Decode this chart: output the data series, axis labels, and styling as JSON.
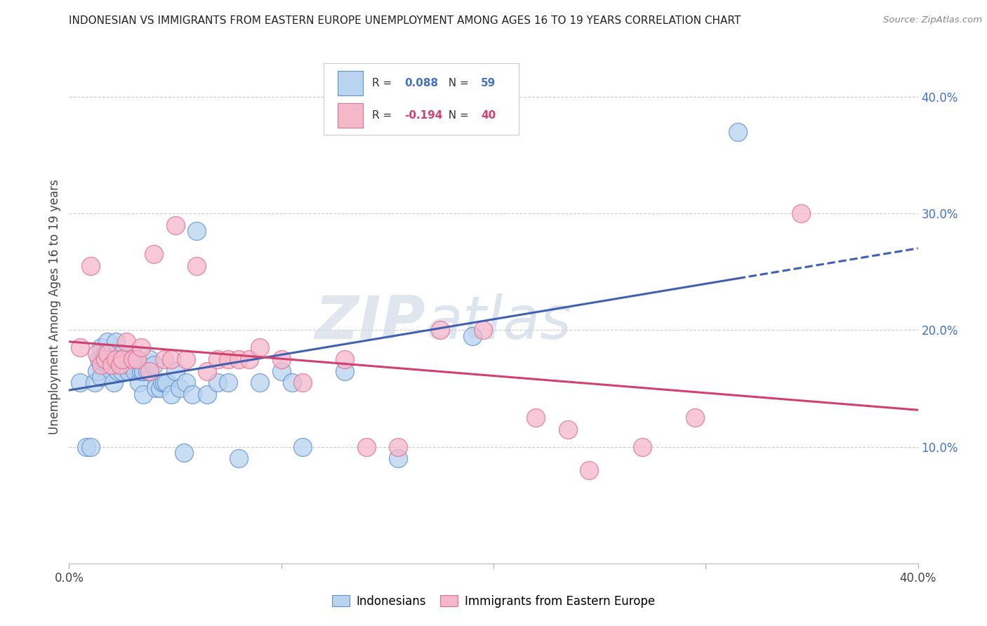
{
  "title": "INDONESIAN VS IMMIGRANTS FROM EASTERN EUROPE UNEMPLOYMENT AMONG AGES 16 TO 19 YEARS CORRELATION CHART",
  "source": "Source: ZipAtlas.com",
  "ylabel": "Unemployment Among Ages 16 to 19 years",
  "xlim": [
    0.0,
    0.4
  ],
  "ylim": [
    0.0,
    0.44
  ],
  "yticks": [
    0.0,
    0.1,
    0.2,
    0.3,
    0.4
  ],
  "ytick_labels": [
    "",
    "10.0%",
    "20.0%",
    "30.0%",
    "40.0%"
  ],
  "xtick_positions": [
    0.0,
    0.1,
    0.2,
    0.3,
    0.4
  ],
  "xtick_labels": [
    "0.0%",
    "",
    "",
    "",
    "40.0%"
  ],
  "blue_R": "0.088",
  "blue_N": "59",
  "pink_R": "-0.194",
  "pink_N": "40",
  "blue_face_color": "#b8d4f0",
  "pink_face_color": "#f5b8cb",
  "blue_edge_color": "#6090d0",
  "pink_edge_color": "#e07090",
  "blue_line_color": "#4060b0",
  "pink_line_color": "#d04070",
  "grid_color": "#cccccc",
  "legend_label_blue": "Indonesians",
  "legend_label_pink": "Immigrants from Eastern Europe",
  "watermark_text": "ZIPatlas",
  "blue_x": [
    0.005,
    0.008,
    0.01,
    0.012,
    0.013,
    0.014,
    0.015,
    0.015,
    0.016,
    0.017,
    0.018,
    0.018,
    0.02,
    0.02,
    0.021,
    0.022,
    0.022,
    0.023,
    0.024,
    0.025,
    0.025,
    0.026,
    0.027,
    0.028,
    0.029,
    0.03,
    0.031,
    0.032,
    0.033,
    0.034,
    0.035,
    0.035,
    0.037,
    0.038,
    0.04,
    0.041,
    0.043,
    0.044,
    0.045,
    0.046,
    0.048,
    0.05,
    0.052,
    0.054,
    0.055,
    0.058,
    0.06,
    0.065,
    0.07,
    0.075,
    0.08,
    0.09,
    0.1,
    0.105,
    0.11,
    0.13,
    0.155,
    0.19,
    0.315
  ],
  "blue_y": [
    0.155,
    0.1,
    0.1,
    0.155,
    0.165,
    0.175,
    0.16,
    0.185,
    0.175,
    0.18,
    0.17,
    0.19,
    0.165,
    0.175,
    0.155,
    0.175,
    0.19,
    0.165,
    0.175,
    0.165,
    0.18,
    0.17,
    0.175,
    0.165,
    0.17,
    0.18,
    0.165,
    0.175,
    0.155,
    0.165,
    0.145,
    0.165,
    0.165,
    0.175,
    0.17,
    0.15,
    0.15,
    0.155,
    0.155,
    0.155,
    0.145,
    0.165,
    0.15,
    0.095,
    0.155,
    0.145,
    0.285,
    0.145,
    0.155,
    0.155,
    0.09,
    0.155,
    0.165,
    0.155,
    0.1,
    0.165,
    0.09,
    0.195,
    0.37
  ],
  "pink_x": [
    0.005,
    0.01,
    0.013,
    0.015,
    0.017,
    0.018,
    0.02,
    0.022,
    0.024,
    0.025,
    0.027,
    0.03,
    0.032,
    0.034,
    0.038,
    0.04,
    0.045,
    0.048,
    0.05,
    0.055,
    0.06,
    0.065,
    0.07,
    0.075,
    0.08,
    0.085,
    0.09,
    0.1,
    0.11,
    0.13,
    0.14,
    0.155,
    0.175,
    0.195,
    0.22,
    0.235,
    0.245,
    0.27,
    0.295,
    0.345
  ],
  "pink_y": [
    0.185,
    0.255,
    0.18,
    0.17,
    0.175,
    0.18,
    0.17,
    0.175,
    0.17,
    0.175,
    0.19,
    0.175,
    0.175,
    0.185,
    0.165,
    0.265,
    0.175,
    0.175,
    0.29,
    0.175,
    0.255,
    0.165,
    0.175,
    0.175,
    0.175,
    0.175,
    0.185,
    0.175,
    0.155,
    0.175,
    0.1,
    0.1,
    0.2,
    0.2,
    0.125,
    0.115,
    0.08,
    0.1,
    0.125,
    0.3
  ]
}
